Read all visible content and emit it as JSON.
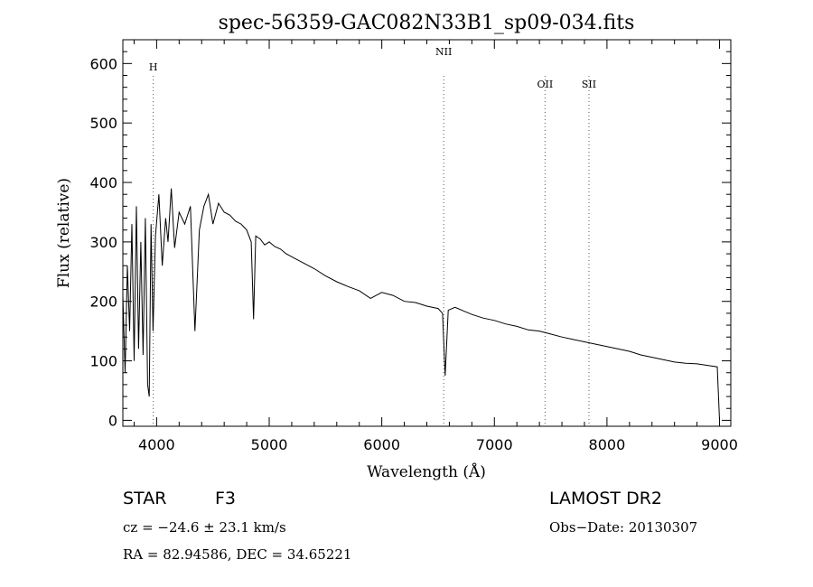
{
  "title": "spec-56359-GAC082N33B1_sp09-034.fits",
  "chart_data": {
    "type": "line",
    "title": "spec-56359-GAC082N33B1_sp09-034.fits",
    "xlabel": "Wavelength (Å)",
    "ylabel": "Flux (relative)",
    "xlim": [
      3700,
      9100
    ],
    "ylim": [
      -10,
      640
    ],
    "xticks": [
      4000,
      5000,
      6000,
      7000,
      8000,
      9000
    ],
    "yticks": [
      0,
      100,
      200,
      300,
      400,
      500,
      600
    ],
    "grid": false,
    "series": [
      {
        "x": [
          3700,
          3720,
          3740,
          3760,
          3780,
          3800,
          3820,
          3840,
          3860,
          3880,
          3900,
          3920,
          3934,
          3950,
          3968,
          3990,
          4020,
          4050,
          4080,
          4101,
          4130,
          4160,
          4200,
          4250,
          4300,
          4340,
          4380,
          4420,
          4460,
          4500,
          4550,
          4600,
          4650,
          4700,
          4750,
          4800,
          4840,
          4861,
          4880,
          4920,
          4960,
          5000,
          5050,
          5100,
          5150,
          5200,
          5300,
          5400,
          5500,
          5600,
          5700,
          5800,
          5900,
          6000,
          6100,
          6200,
          6300,
          6400,
          6500,
          6540,
          6563,
          6590,
          6650,
          6700,
          6800,
          6900,
          7000,
          7100,
          7200,
          7300,
          7400,
          7500,
          7600,
          7700,
          7800,
          7900,
          8000,
          8100,
          8200,
          8300,
          8400,
          8500,
          8600,
          8700,
          8800,
          8900,
          8980,
          9000
        ],
        "y": [
          210,
          80,
          260,
          150,
          330,
          100,
          360,
          120,
          300,
          110,
          340,
          60,
          40,
          330,
          150,
          310,
          380,
          260,
          340,
          300,
          390,
          290,
          350,
          330,
          360,
          150,
          320,
          360,
          380,
          330,
          365,
          350,
          345,
          335,
          330,
          320,
          300,
          170,
          310,
          305,
          295,
          300,
          292,
          288,
          280,
          275,
          265,
          255,
          243,
          233,
          225,
          218,
          205,
          215,
          210,
          200,
          198,
          192,
          188,
          180,
          75,
          185,
          190,
          186,
          178,
          172,
          168,
          162,
          158,
          152,
          150,
          145,
          140,
          136,
          132,
          128,
          124,
          120,
          116,
          110,
          106,
          102,
          98,
          96,
          95,
          92,
          90,
          0
        ]
      }
    ],
    "annotations": [
      {
        "label": "H",
        "x": 3970
      },
      {
        "label": "NII",
        "x": 6550
      },
      {
        "label": "OII",
        "x": 7450
      },
      {
        "label": "SII",
        "x": 7840
      }
    ]
  },
  "info": {
    "object_class": "STAR",
    "subclass": "F3",
    "survey": "LAMOST DR2",
    "cz": "cz = −24.6 ± 23.1 km/s",
    "obs_date": "Obs−Date: 20130307",
    "coords": "RA =  82.94586, DEC =  34.65221"
  }
}
